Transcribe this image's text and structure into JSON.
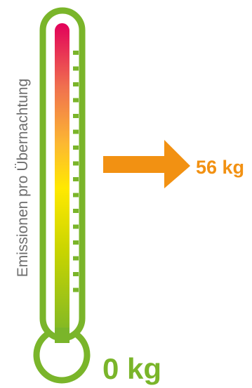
{
  "axis_label": "Emissionen pro Übernachtung",
  "value_label": "56 kg",
  "base_label": "0 kg",
  "colors": {
    "frame_green": "#7ab52a",
    "arrow_orange": "#f29112",
    "value_text": "#f29112",
    "base_text": "#7ab52a",
    "axis_text": "#6d6d6d",
    "gradient": [
      "#e2005a",
      "#f0704f",
      "#fcb832",
      "#ffe900",
      "#c8d400",
      "#7ab52a"
    ]
  },
  "fill_level": 1.0
}
